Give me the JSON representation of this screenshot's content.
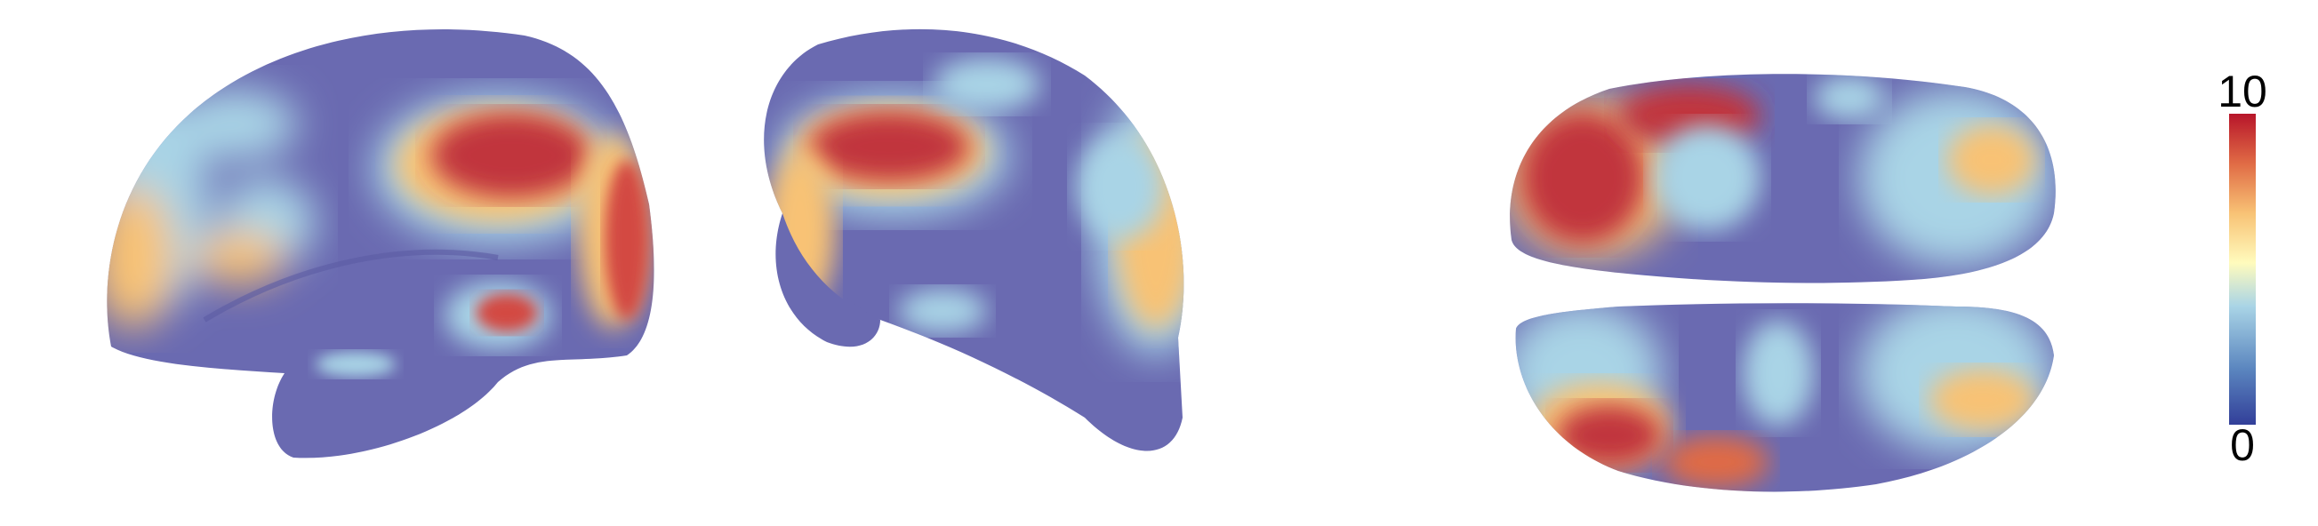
{
  "figure": {
    "views": [
      {
        "name": "lateral-left-hemisphere"
      },
      {
        "name": "medial-hemisphere"
      },
      {
        "name": "dorsal-ventral-view"
      }
    ]
  },
  "colorbar": {
    "max_label": "10",
    "min_label": "0",
    "range": [
      0,
      10
    ],
    "colormap": "RdYlBu_r",
    "stops": [
      "#323f99",
      "#5b86bf",
      "#a9d4e6",
      "#fffbbd",
      "#f8c275",
      "#e06b45",
      "#b7152a"
    ]
  },
  "colors": {
    "baseline": "#6a6ab1",
    "low": "#a9d4e6",
    "mid": "#fffbbd",
    "mid_high": "#f5a462",
    "high": "#c1353c"
  }
}
